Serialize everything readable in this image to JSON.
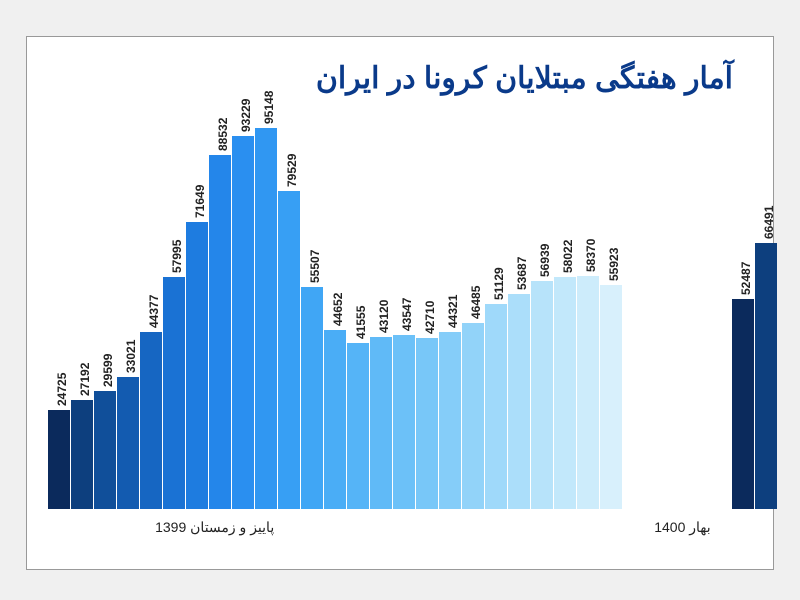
{
  "title": "آمار هفتگی مبتلایان کرونا در ایران",
  "title_color": "#0a3a8a",
  "title_fontsize": 30,
  "background_color": "#ffffff",
  "frame_border_color": "#999999",
  "chart": {
    "type": "bar",
    "y_max": 100000,
    "bar_label_fontsize": 12,
    "x_label_fontsize": 14,
    "groups": [
      {
        "label": "پاییز و زمستان 1399",
        "bars": [
          {
            "value": 24725,
            "color": "#0b2a5c"
          },
          {
            "value": 27192,
            "color": "#0d3f7e"
          },
          {
            "value": 29599,
            "color": "#104f9a"
          },
          {
            "value": 33021,
            "color": "#135bb0"
          },
          {
            "value": 44377,
            "color": "#1666c2"
          },
          {
            "value": 57995,
            "color": "#1a72d4"
          },
          {
            "value": 71649,
            "color": "#1e7ce0"
          },
          {
            "value": 88532,
            "color": "#2486ea"
          },
          {
            "value": 93229,
            "color": "#2a8ff0"
          },
          {
            "value": 95148,
            "color": "#3097f2"
          },
          {
            "value": 79529,
            "color": "#379ff4"
          },
          {
            "value": 55507,
            "color": "#40a6f5"
          },
          {
            "value": 44652,
            "color": "#4aadf6"
          },
          {
            "value": 41555,
            "color": "#55b4f7"
          },
          {
            "value": 43120,
            "color": "#60baf7"
          },
          {
            "value": 43547,
            "color": "#6cc1f8"
          },
          {
            "value": 42710,
            "color": "#78c7f8"
          },
          {
            "value": 44321,
            "color": "#85cdf9"
          },
          {
            "value": 46485,
            "color": "#92d3f9"
          },
          {
            "value": 51129,
            "color": "#9fd9fa"
          },
          {
            "value": 53687,
            "color": "#abdefa"
          },
          {
            "value": 56939,
            "color": "#b7e3fa"
          },
          {
            "value": 58022,
            "color": "#c2e8fb"
          },
          {
            "value": 58370,
            "color": "#cdecfb"
          },
          {
            "value": 55923,
            "color": "#d8f0fc"
          }
        ]
      },
      {
        "label": "بهار 1400",
        "bars": [
          {
            "value": 52487,
            "color": "#0b2a5c"
          },
          {
            "value": 66491,
            "color": "#0d3f7e"
          }
        ]
      }
    ]
  }
}
